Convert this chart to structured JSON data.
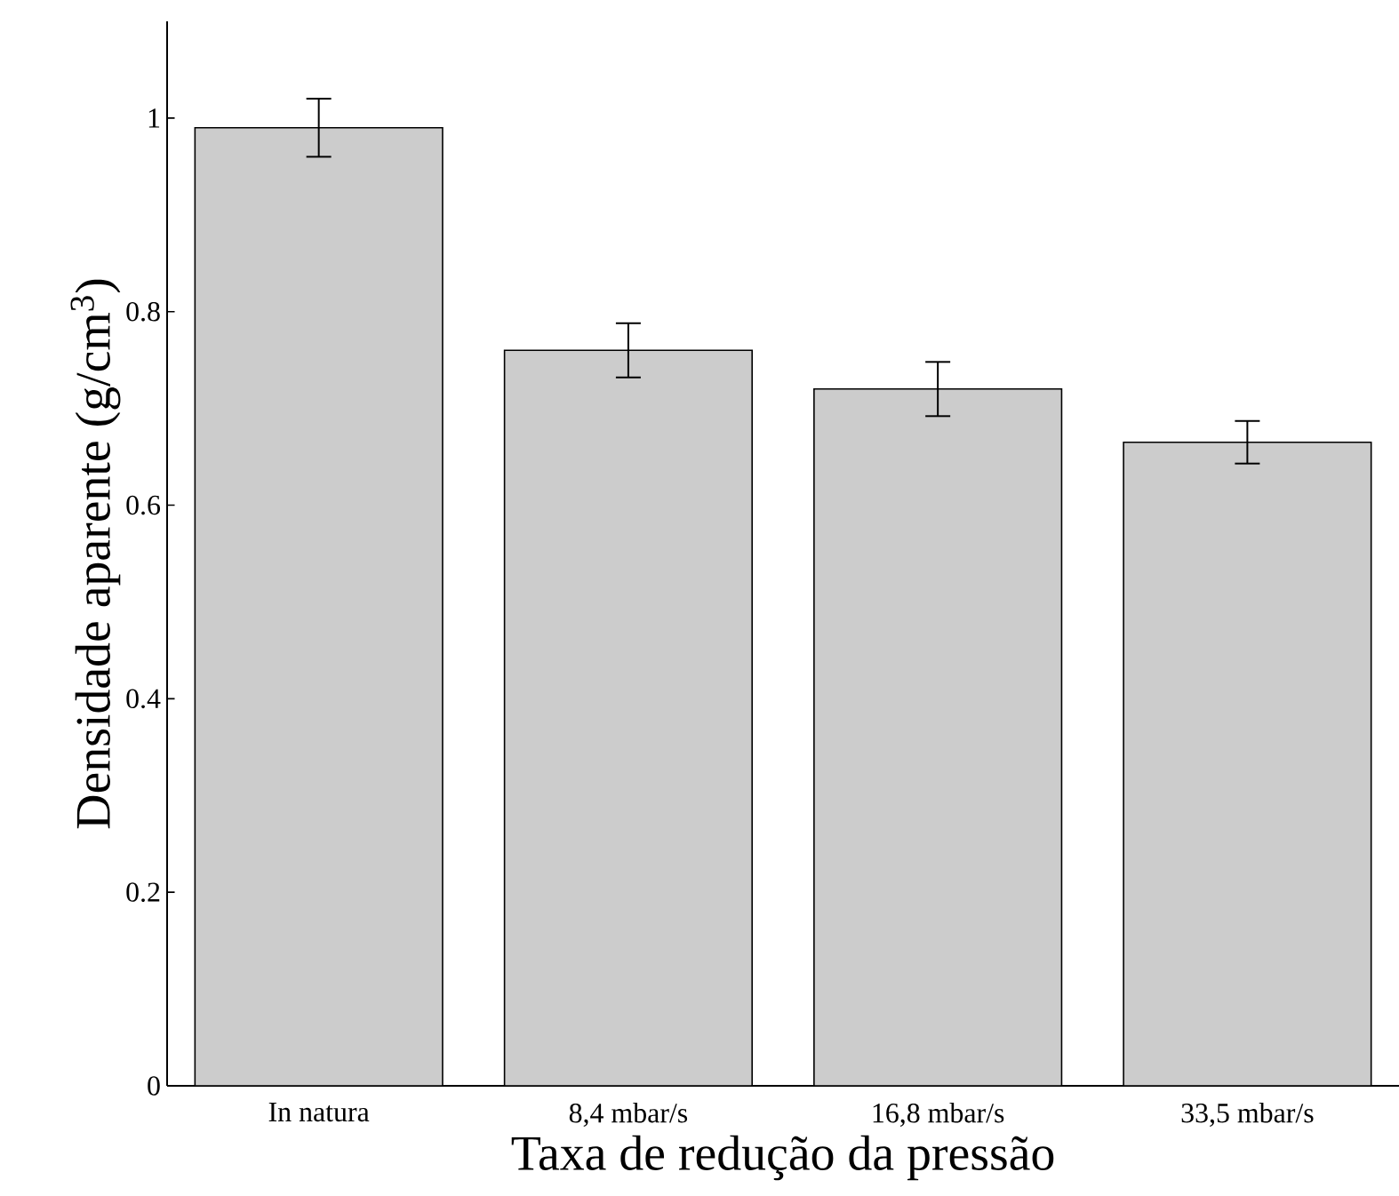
{
  "chart_data": {
    "type": "bar",
    "xlabel": "Taxa de redução da pressão",
    "ylabel": "Densidade aparente (g/cm$^{3}$)",
    "categories": [
      "In natura",
      "8,4 mbar/s",
      "16,8 mbar/s",
      "33,5 mbar/s"
    ],
    "values": [
      0.99,
      0.76,
      0.72,
      0.665
    ],
    "errors": [
      0.03,
      0.028,
      0.028,
      0.022
    ],
    "color": "#cccccc",
    "ylim": [
      0,
      1.1
    ],
    "yticks": [
      0,
      0.2,
      0.4,
      0.6,
      0.8,
      1
    ],
    "grid": false
  }
}
